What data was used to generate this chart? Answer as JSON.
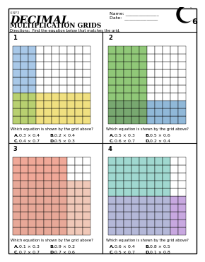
{
  "title_main": "DECIMAL",
  "title_sub": "MULTIPLICATION GRIDS",
  "directions": "Directions: Find the equation below that matches the grid.",
  "name_label": "Name: _______________",
  "date_label": "Date: _______________",
  "version": "C6",
  "background": "#ffffff",
  "grid_size": 10,
  "grids": [
    {
      "number": "1",
      "answer": "0.3 × 0.4",
      "color1": "#a8c8e8",
      "color2": "#f0e080",
      "color_overlap": "#c8d870",
      "cols1": 3,
      "rows2": 4,
      "choices": [
        [
          "A.",
          "0.3 × 0.4",
          "B.",
          "0.2 × 0.4"
        ],
        [
          "C.",
          "0.4 × 0.7",
          "D.",
          "0.5 × 0.3"
        ]
      ]
    },
    {
      "number": "2",
      "answer": "0.5 × 0.3",
      "color1": "#90c878",
      "color2": "#90b8d8",
      "color_overlap": "#80a878",
      "cols1": 5,
      "rows2": 3,
      "choices": [
        [
          "A.",
          "0.5 × 0.3",
          "B.",
          "0.5 × 0.6"
        ],
        [
          "C.",
          "0.6 × 0.7",
          "D.",
          "0.2 × 0.4"
        ]
      ]
    },
    {
      "number": "3",
      "answer": "0.7 × 0.7",
      "color1": "#f0a898",
      "color2": "#f0c8b8",
      "color_overlap": "#e89888",
      "cols1": 7,
      "rows2": 7,
      "choices": [
        [
          "A.",
          "0.1 × 0.3",
          "B.",
          "0.9 × 0.2"
        ],
        [
          "C.",
          "0.7 × 0.7",
          "D.",
          "0.7 × 0.6"
        ]
      ]
    },
    {
      "number": "4",
      "answer": "0.8 × 0.5",
      "color1": "#a0d8d0",
      "color2": "#c8a8e0",
      "color_overlap": "#b0b8d8",
      "cols1": 8,
      "rows2": 5,
      "choices": [
        [
          "A.",
          "0.6 × 0.4",
          "B.",
          "0.8 × 0.5"
        ],
        [
          "C.",
          "0.5 × 0.7",
          "D.",
          "0.1 × 0.8"
        ]
      ]
    }
  ]
}
